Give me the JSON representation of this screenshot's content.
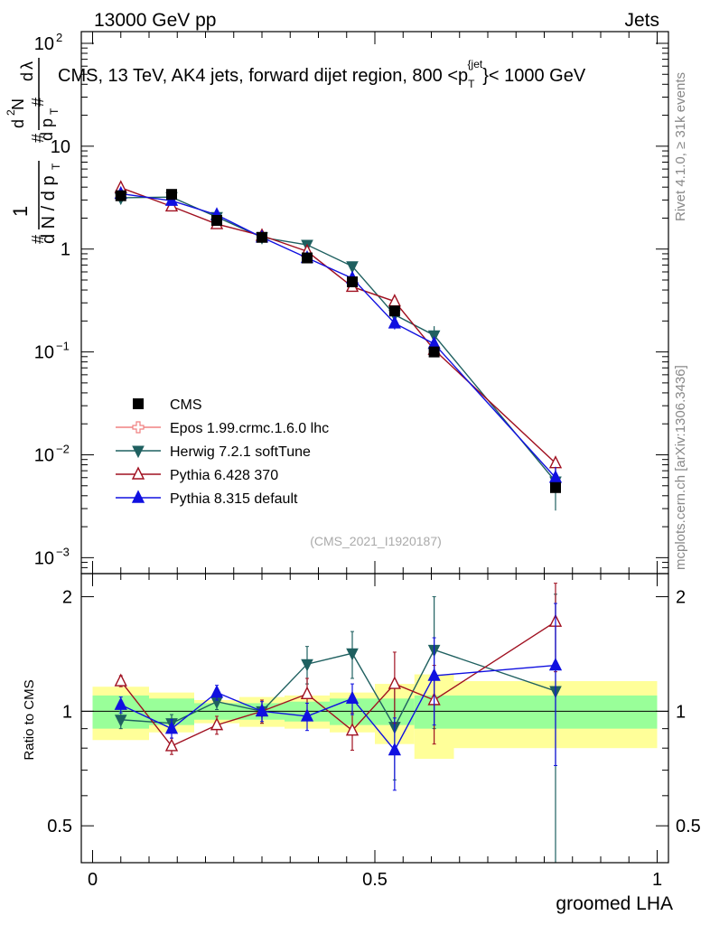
{
  "header": {
    "left": "13000 GeV pp",
    "right": "Jets"
  },
  "side": {
    "rivet": "Rivet 4.1.0, ≥ 31k events",
    "mcplots": "mcplots.cern.ch [arXiv:1306.3436]"
  },
  "chart_data": {
    "type": "scatter",
    "title": "CMS, 13 TeV, AK4 jets, forward dijet region, 800 <p_T^{jet}< 1000 GeV",
    "title_parts": {
      "main": "CMS, 13 TeV, AK4 jets, forward dijet region, 800 <p",
      "sub": "T",
      "sup": "{jet",
      "end": "}< 1000 GeV"
    },
    "analysis_label": "(CMS_2021_I1920187)",
    "xlabel": "groomed LHA",
    "ylabel": "1/N dN/dλ",
    "ratio_ylabel": "Ratio to CMS",
    "xlim": [
      -0.02,
      1.02
    ],
    "ylim": [
      0.0007,
      130
    ],
    "ratio_ylim": [
      0.4,
      2.3
    ],
    "x_ticks": [
      0,
      0.5,
      1
    ],
    "x_tick_labels": [
      "0",
      "0.5",
      "1"
    ],
    "y_ticks": [
      {
        "v": 100,
        "base": "10",
        "exp": "2"
      },
      {
        "v": 10,
        "base": "10",
        "exp": ""
      },
      {
        "v": 1,
        "base": "1",
        "exp": ""
      },
      {
        "v": 0.1,
        "base": "10",
        "exp": "−1"
      },
      {
        "v": 0.01,
        "base": "10",
        "exp": "−2"
      },
      {
        "v": 0.001,
        "base": "10",
        "exp": "−3"
      }
    ],
    "ratio_ticks": [
      0.5,
      1,
      2
    ],
    "ratio_tick_labels": [
      "0.5",
      "1",
      "2"
    ],
    "bins": [
      {
        "lo": 0.0,
        "hi": 0.1
      },
      {
        "lo": 0.1,
        "hi": 0.18
      },
      {
        "lo": 0.18,
        "hi": 0.26
      },
      {
        "lo": 0.26,
        "hi": 0.34
      },
      {
        "lo": 0.34,
        "hi": 0.42
      },
      {
        "lo": 0.42,
        "hi": 0.5
      },
      {
        "lo": 0.5,
        "hi": 0.57
      },
      {
        "lo": 0.57,
        "hi": 0.64
      },
      {
        "lo": 0.64,
        "hi": 1.0
      }
    ],
    "x": [
      0.05,
      0.14,
      0.22,
      0.3,
      0.38,
      0.46,
      0.535,
      0.605,
      0.82
    ],
    "cms": {
      "name": "CMS",
      "values": [
        3.3,
        3.4,
        1.9,
        1.3,
        0.82,
        0.48,
        0.25,
        0.1,
        0.0048
      ],
      "band_inner": [
        0.1,
        0.08,
        0.05,
        0.05,
        0.06,
        0.08,
        0.08,
        0.1,
        0.1
      ],
      "band_outer": [
        0.16,
        0.12,
        0.07,
        0.09,
        0.1,
        0.12,
        0.18,
        0.25,
        0.2
      ]
    },
    "series": [
      {
        "name": "Epos 1.99.crmc.1.6.0 lhc",
        "color": "#f08080",
        "marker": "open-cross",
        "values": [],
        "ratio": []
      },
      {
        "name": "Herwig 7.2.1 softTune",
        "color": "#1f6060",
        "marker": "triangle-down",
        "values": [
          3.15,
          3.2,
          2.05,
          1.3,
          1.1,
          0.68,
          0.23,
          0.145,
          0.0055
        ],
        "ratio": [
          0.95,
          0.93,
          1.06,
          1.0,
          1.33,
          1.42,
          0.91,
          1.45,
          1.13
        ],
        "ratio_err": [
          0.05,
          0.05,
          0.05,
          0.07,
          0.15,
          0.2,
          0.25,
          0.55,
          0.9
        ]
      },
      {
        "name": "Pythia 6.428 370",
        "color": "#a01020",
        "marker": "open-triangle-up",
        "values": [
          3.95,
          2.6,
          1.75,
          1.35,
          0.95,
          0.43,
          0.31,
          0.105,
          0.0083
        ],
        "ratio": [
          1.2,
          0.81,
          0.92,
          1.0,
          1.11,
          0.89,
          1.18,
          1.07,
          1.72
        ],
        "ratio_err": [
          0.04,
          0.04,
          0.05,
          0.07,
          0.11,
          0.1,
          0.25,
          0.25,
          0.45
        ]
      },
      {
        "name": "Pythia 8.315 default",
        "color": "#1010e0",
        "marker": "triangle-up",
        "values": [
          3.45,
          2.95,
          2.15,
          1.3,
          0.82,
          0.52,
          0.19,
          0.12,
          0.006
        ],
        "ratio": [
          1.04,
          0.9,
          1.12,
          1.0,
          0.97,
          1.08,
          0.79,
          1.24,
          1.32
        ],
        "ratio_err": [
          0.05,
          0.05,
          0.05,
          0.06,
          0.08,
          0.1,
          0.17,
          0.32,
          0.6
        ]
      }
    ]
  }
}
